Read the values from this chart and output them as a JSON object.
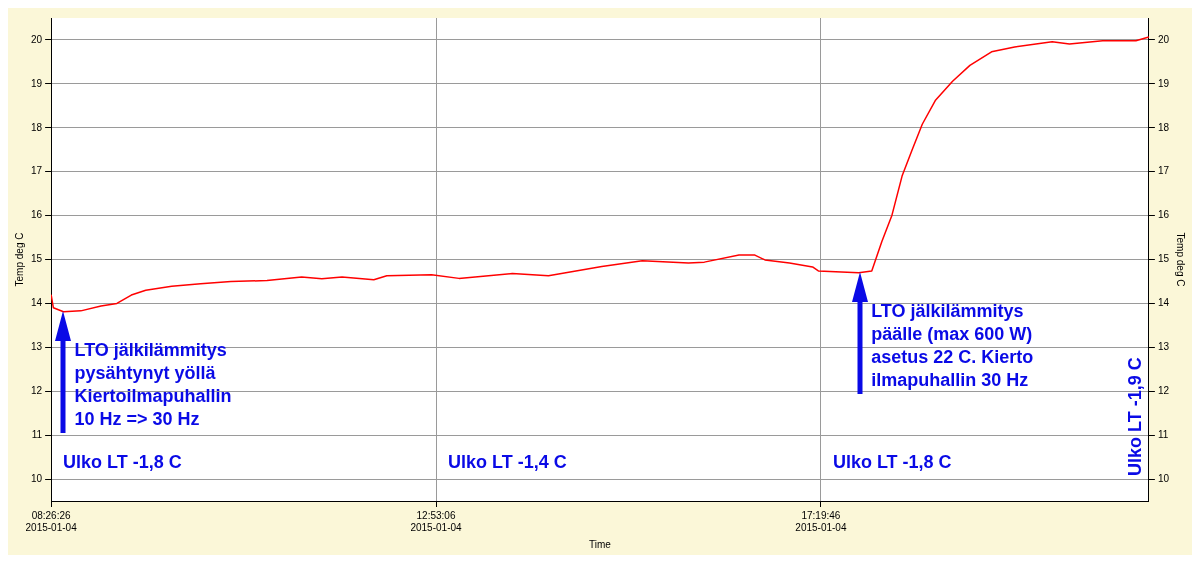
{
  "chart_data": {
    "type": "line",
    "xlabel": "Time",
    "ylabel": "Temp deg C",
    "y2label": "Temp deg C",
    "xlim": [
      "2015-01-04T08:26:26",
      "2015-01-04T21:07"
    ],
    "xticks": [
      {
        "value": "2015-01-04T08:26:26",
        "label": "08:26:26\n2015-01-04"
      },
      {
        "value": "2015-01-04T12:53:06",
        "label": "12:53:06\n2015-01-04"
      },
      {
        "value": "2015-01-04T17:19:46",
        "label": "17:19:46\n2015-01-04"
      }
    ],
    "ylim": [
      9.5,
      20.5
    ],
    "yticks": [
      10,
      11,
      12,
      13,
      14,
      15,
      16,
      17,
      18,
      19,
      20
    ],
    "y2lim": [
      9.5,
      20.5
    ],
    "y2ticks": [
      10,
      11,
      12,
      13,
      14,
      15,
      16,
      17,
      18,
      19,
      20
    ],
    "grid": true,
    "series": [
      {
        "color": "#ff0000",
        "x": [
          "2015-01-04T08:26:26",
          "2015-01-04T08:28",
          "2015-01-04T08:35",
          "2015-01-04T08:47",
          "2015-01-04T09:01",
          "2015-01-04T09:12",
          "2015-01-04T09:22",
          "2015-01-04T09:32",
          "2015-01-04T09:50",
          "2015-01-04T10:10",
          "2015-01-04T10:31",
          "2015-01-04T10:56",
          "2015-01-04T11:20",
          "2015-01-04T11:34",
          "2015-01-04T11:48",
          "2015-01-04T12:10",
          "2015-01-04T12:19",
          "2015-01-04T12:50",
          "2015-01-04T13:09",
          "2015-01-04T13:46",
          "2015-01-04T14:11",
          "2015-01-04T14:48",
          "2015-01-04T15:16",
          "2015-01-04T15:48",
          "2015-01-04T15:59",
          "2015-01-04T16:23",
          "2015-01-04T16:34",
          "2015-01-04T16:41",
          "2015-01-04T16:58",
          "2015-01-04T17:14",
          "2015-01-04T17:18",
          "2015-01-04T17:46",
          "2015-01-04T17:55",
          "2015-01-04T18:02",
          "2015-01-04T18:09",
          "2015-01-04T18:16",
          "2015-01-04T18:23",
          "2015-01-04T18:30",
          "2015-01-04T18:39",
          "2015-01-04T18:51",
          "2015-01-04T19:03",
          "2015-01-04T19:18",
          "2015-01-04T19:34",
          "2015-01-04T20:00",
          "2015-01-04T20:12",
          "2015-01-04T20:35",
          "2015-01-04T20:58",
          "2015-01-04T21:07"
        ],
        "values": [
          14.2,
          13.9,
          13.81,
          13.83,
          13.94,
          14.0,
          14.19,
          14.3,
          14.39,
          14.45,
          14.5,
          14.52,
          14.6,
          14.56,
          14.6,
          14.54,
          14.63,
          14.65,
          14.57,
          14.68,
          14.63,
          14.84,
          14.97,
          14.92,
          14.94,
          15.1,
          15.1,
          14.99,
          14.92,
          14.83,
          14.74,
          14.7,
          14.74,
          15.41,
          16.01,
          16.9,
          17.5,
          18.08,
          18.62,
          19.06,
          19.42,
          19.73,
          19.84,
          19.96,
          19.91,
          19.98,
          19.98,
          20.07
        ]
      }
    ],
    "annotations": [
      {
        "text": "LTO jälkilämmitys\npysähtynyt yöllä\nKiertoilmapuhallin\n10 Hz => 30 Hz",
        "x": "2015-01-04T08:35",
        "y": 13.83
      },
      {
        "text": "LTO jälkilämmitys\npäälle (max 600 W)\nasetus 22 C. Kierto\nilmapuhallin 30 Hz",
        "x": "2015-01-04T17:47",
        "y": 14.72
      },
      "Ulko LT -1,8 C",
      "Ulko LT -1,4 C",
      "Ulko LT -1,8 C",
      "Ulko LT -1,9 C"
    ]
  }
}
